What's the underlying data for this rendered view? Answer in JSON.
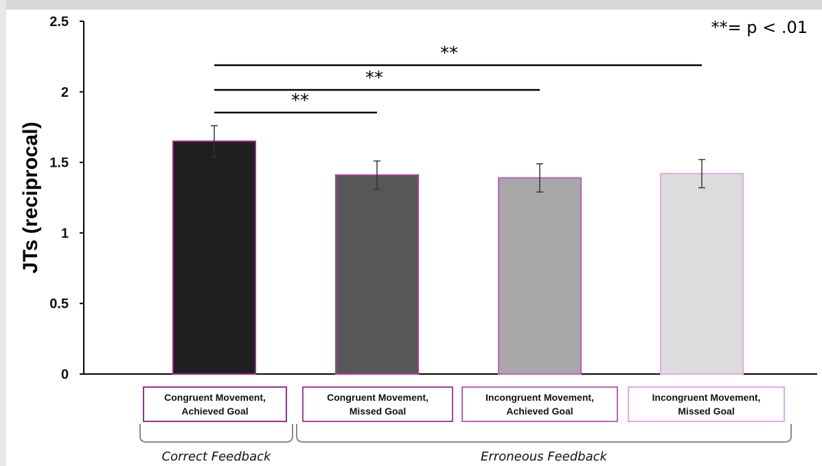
{
  "chart_data": {
    "type": "bar",
    "ylabel": "JTs (reciprocal)",
    "xlabel": "",
    "ylim": [
      0,
      2.5
    ],
    "yticks": [
      "0",
      "0.5",
      "1",
      "1.5",
      "2",
      "2.5"
    ],
    "categories": [
      "Congruent Movement,\nAchieved Goal",
      "Congruent Movement,\nMissed Goal",
      "Incongruent Movement,\nAchieved Goal",
      "Incongruent Movement,\nMissed Goal"
    ],
    "values": [
      1.65,
      1.41,
      1.39,
      1.42
    ],
    "error": [
      0.11,
      0.1,
      0.1,
      0.1
    ],
    "bar_colors": [
      "#1f1f1f",
      "#575757",
      "#a8a8a8",
      "#dcdcdc"
    ],
    "bar_outline_colors": [
      "#9a2f8e",
      "#b03aa6",
      "#c25ec0",
      "#e6a8e2"
    ],
    "significance": [
      {
        "from": 0,
        "to": 1,
        "label": "**"
      },
      {
        "from": 0,
        "to": 2,
        "label": "**"
      },
      {
        "from": 0,
        "to": 3,
        "label": "**"
      }
    ],
    "legend_note": "**= p < .01",
    "groups": [
      {
        "label": "Correct Feedback",
        "categories": [
          0
        ]
      },
      {
        "label": "Erroneous Feedback",
        "categories": [
          1,
          2,
          3
        ]
      }
    ],
    "grid": false
  }
}
